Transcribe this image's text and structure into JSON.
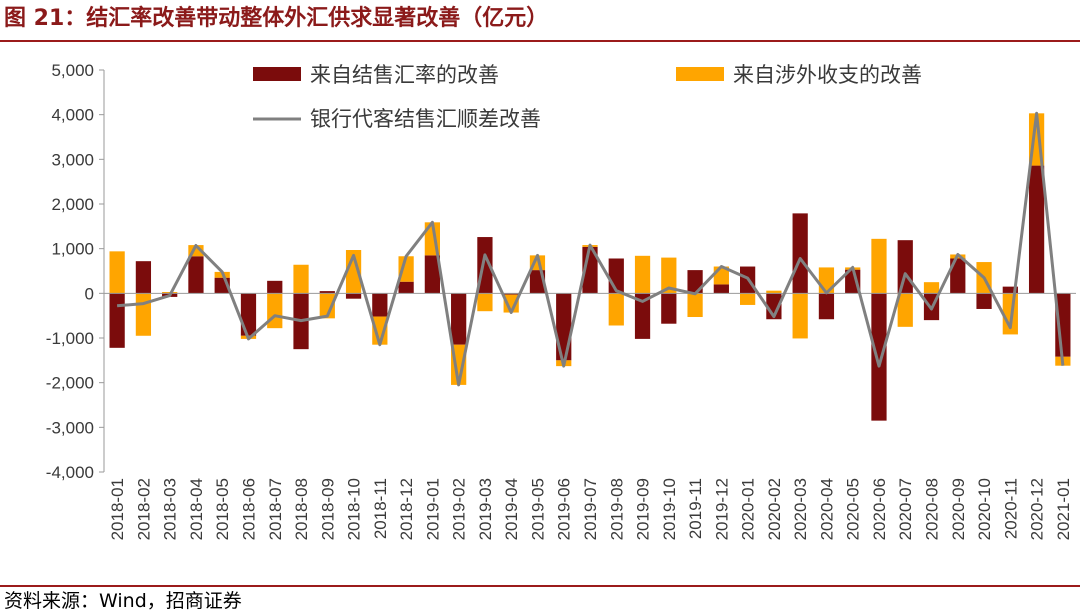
{
  "title": "图 21：结汇率改善带动整体外汇供求显著改善（亿元）",
  "source": "资料来源：Wind，招商证券",
  "colors": {
    "accent": "#9b1b1b",
    "series_dark": "#7b0c0c",
    "series_orange": "#ffa500",
    "series_line": "#808080"
  },
  "chart_data": {
    "type": "bar",
    "stacked": true,
    "categories": [
      "2018-01",
      "2018-02",
      "2018-03",
      "2018-04",
      "2018-05",
      "2018-06",
      "2018-07",
      "2018-08",
      "2018-09",
      "2018-10",
      "2018-11",
      "2018-12",
      "2019-01",
      "2019-02",
      "2019-03",
      "2019-04",
      "2019-05",
      "2019-06",
      "2019-07",
      "2019-08",
      "2019-09",
      "2019-10",
      "2019-11",
      "2019-12",
      "2020-01",
      "2020-02",
      "2020-03",
      "2020-04",
      "2020-05",
      "2020-06",
      "2020-07",
      "2020-08",
      "2020-09",
      "2020-10",
      "2020-11",
      "2020-12",
      "2021-01"
    ],
    "series": [
      {
        "name": "来自结售汇率的改善",
        "type": "bar",
        "color": "#7b0c0c",
        "values": [
          -1220,
          720,
          -80,
          830,
          350,
          -950,
          280,
          -1250,
          50,
          -120,
          -520,
          260,
          850,
          -1150,
          1260,
          -30,
          520,
          -1500,
          1040,
          780,
          -1020,
          -680,
          520,
          200,
          600,
          -580,
          1790,
          -580,
          530,
          -2850,
          1190,
          -600,
          780,
          -350,
          150,
          2860,
          -1420
        ]
      },
      {
        "name": "来自涉外收支的改善",
        "type": "bar",
        "color": "#ffa500",
        "values": [
          940,
          -950,
          30,
          250,
          130,
          -70,
          -780,
          640,
          -560,
          970,
          -630,
          570,
          740,
          -900,
          -400,
          -400,
          330,
          -130,
          40,
          -720,
          840,
          800,
          -530,
          400,
          -260,
          60,
          -1010,
          580,
          50,
          1220,
          -750,
          250,
          90,
          700,
          -920,
          1170,
          -200
        ]
      },
      {
        "name": "银行代客结售汇顺差改善",
        "type": "line",
        "color": "#808080",
        "values": [
          -280,
          -230,
          -50,
          1070,
          480,
          -1020,
          -500,
          -610,
          -510,
          850,
          -1150,
          830,
          1590,
          -2050,
          860,
          -430,
          850,
          -1630,
          1080,
          60,
          -180,
          120,
          -10,
          600,
          340,
          -520,
          780,
          10,
          580,
          -1630,
          440,
          -350,
          870,
          350,
          -770,
          4030,
          -1620
        ]
      }
    ],
    "yticks": [
      5000,
      4000,
      3000,
      2000,
      1000,
      0,
      -1000,
      -2000,
      -3000,
      -4000
    ],
    "ytick_labels": [
      "5,000",
      "4,000",
      "3,000",
      "2,000",
      "1,000",
      "0",
      "-1,000",
      "-2,000",
      "-3,000",
      "-4,000"
    ],
    "ylim": [
      -4000,
      5000
    ],
    "grid": false,
    "legend_position": "top"
  }
}
